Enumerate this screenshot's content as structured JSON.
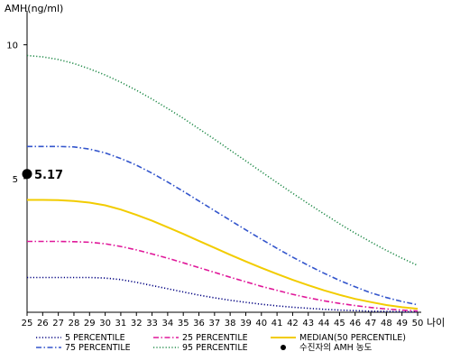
{
  "chart_data": {
    "type": "line",
    "ylabel": "AMH(ng/ml)",
    "xlabel": "나이",
    "xlim": [
      25,
      50
    ],
    "ylim": [
      0,
      11
    ],
    "y_ticks": [
      5,
      10
    ],
    "x_ticks": [
      25,
      26,
      27,
      28,
      29,
      30,
      31,
      32,
      33,
      34,
      35,
      36,
      37,
      38,
      39,
      40,
      41,
      42,
      43,
      44,
      45,
      46,
      47,
      48,
      49,
      50
    ],
    "x": [
      25,
      26,
      27,
      28,
      29,
      30,
      31,
      32,
      33,
      34,
      35,
      36,
      37,
      38,
      39,
      40,
      41,
      42,
      43,
      44,
      45,
      46,
      47,
      48,
      49,
      50
    ],
    "series": [
      {
        "name": "5 PERCENTILE",
        "color": "#000080",
        "dash": "dotted",
        "values": [
          1.3,
          1.3,
          1.3,
          1.3,
          1.3,
          1.28,
          1.22,
          1.12,
          1.0,
          0.88,
          0.76,
          0.64,
          0.54,
          0.45,
          0.37,
          0.3,
          0.24,
          0.19,
          0.15,
          0.11,
          0.08,
          0.06,
          0.04,
          0.03,
          0.02,
          0.02
        ]
      },
      {
        "name": "25 PERCENTILE",
        "color": "#e0189a",
        "dash": "dashdot",
        "values": [
          2.65,
          2.65,
          2.65,
          2.64,
          2.62,
          2.56,
          2.46,
          2.33,
          2.18,
          2.02,
          1.85,
          1.67,
          1.49,
          1.31,
          1.14,
          0.97,
          0.82,
          0.67,
          0.54,
          0.43,
          0.33,
          0.25,
          0.18,
          0.12,
          0.08,
          0.05
        ]
      },
      {
        "name": "MEDIAN(50 PERCENTILE)",
        "color": "#f2cc00",
        "dash": "solid",
        "values": [
          4.2,
          4.2,
          4.19,
          4.16,
          4.1,
          4.0,
          3.84,
          3.64,
          3.42,
          3.18,
          2.93,
          2.67,
          2.41,
          2.15,
          1.9,
          1.66,
          1.43,
          1.21,
          1.01,
          0.82,
          0.65,
          0.5,
          0.38,
          0.27,
          0.19,
          0.13
        ]
      },
      {
        "name": "75 PERCENTILE",
        "color": "#3355cc",
        "dash": "dashdot",
        "values": [
          6.2,
          6.2,
          6.2,
          6.18,
          6.1,
          5.96,
          5.75,
          5.5,
          5.2,
          4.87,
          4.52,
          4.16,
          3.8,
          3.44,
          3.08,
          2.73,
          2.39,
          2.06,
          1.75,
          1.46,
          1.19,
          0.95,
          0.73,
          0.55,
          0.4,
          0.28
        ]
      },
      {
        "name": "95 PERCENTILE",
        "color": "#228b4a",
        "dash": "dotted",
        "values": [
          9.6,
          9.55,
          9.45,
          9.3,
          9.1,
          8.87,
          8.6,
          8.3,
          7.97,
          7.62,
          7.25,
          6.86,
          6.47,
          6.06,
          5.66,
          5.25,
          4.85,
          4.45,
          4.06,
          3.68,
          3.31,
          2.96,
          2.63,
          2.31,
          2.02,
          1.75
        ]
      }
    ],
    "highlight_point": {
      "x": 25,
      "y": 5.17,
      "label": "5.17",
      "name": "수진자의 AMH 농도"
    },
    "legend": [
      {
        "label": "5 PERCENTILE",
        "series": 0
      },
      {
        "label": "25 PERCENTILE",
        "series": 1
      },
      {
        "label": "MEDIAN(50 PERCENTILE)",
        "series": 2
      },
      {
        "label": "75 PERCENTILE",
        "series": 3
      },
      {
        "label": "95 PERCENTILE",
        "series": 4
      },
      {
        "label": "수진자의 AMH 농도",
        "marker": "dot"
      }
    ],
    "legend_position": "bottom",
    "grid": false
  }
}
